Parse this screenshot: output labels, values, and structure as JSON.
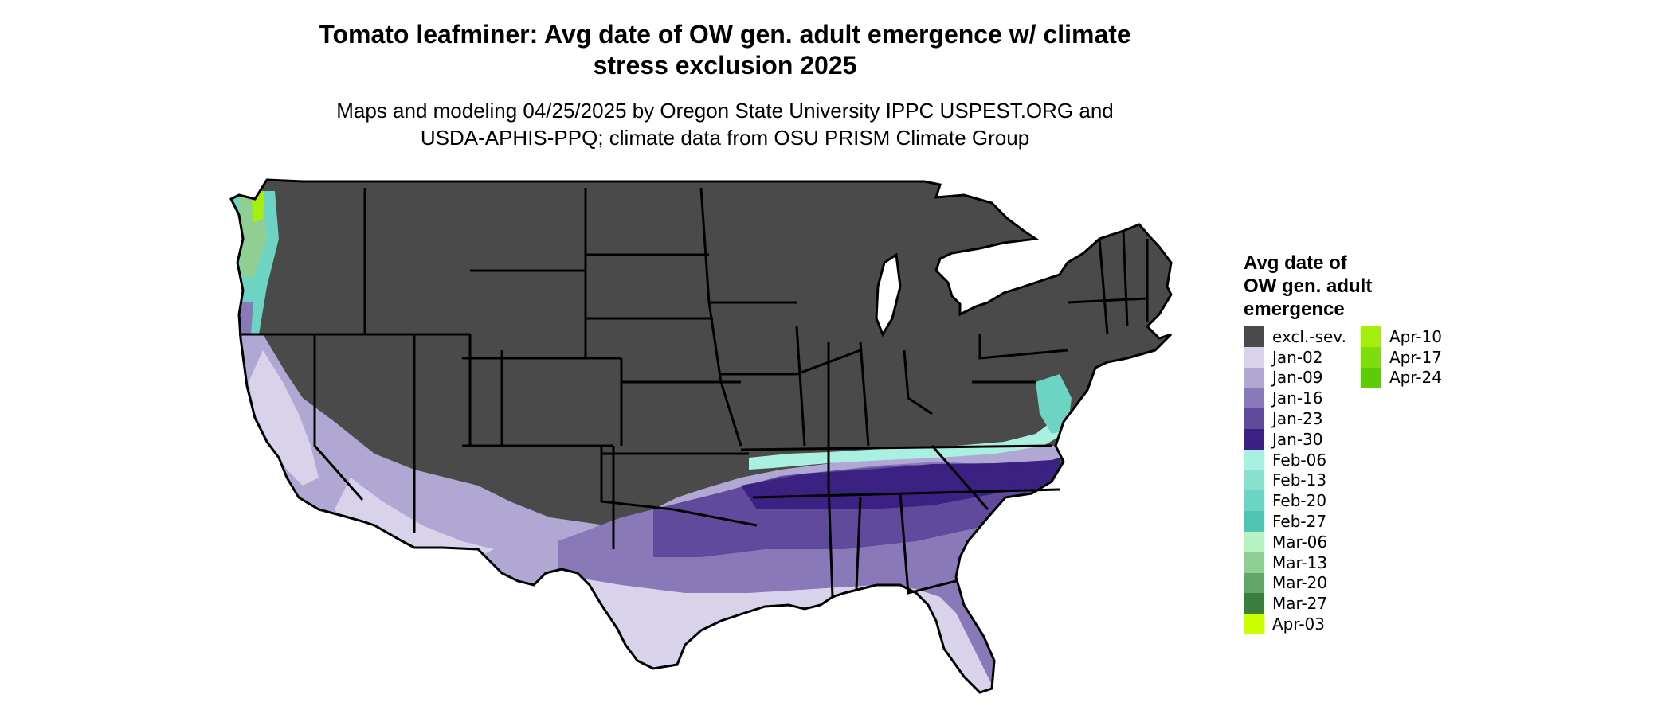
{
  "header": {
    "title_line1": "Tomato leafminer: Avg date of OW gen. adult emergence w/ climate",
    "title_line2": "stress exclusion 2025",
    "subtitle_line1": "Maps and modeling 04/25/2025 by Oregon State University IPPC USPEST.ORG and",
    "subtitle_line2": "USDA-APHIS-PPQ; climate data from OSU PRISM Climate Group"
  },
  "map": {
    "region": "Contiguous United States",
    "excluded_color": "#4a4a4a",
    "border_color": "#000000"
  },
  "legend": {
    "title_line1": "Avg date of",
    "title_line2": "OW gen. adult",
    "title_line3": "emergence",
    "column1": [
      {
        "label": "excl.-sev.",
        "color": "#4a4a4a"
      },
      {
        "label": "Jan-02",
        "color": "#d8d2ea"
      },
      {
        "label": "Jan-09",
        "color": "#b1a7d3"
      },
      {
        "label": "Jan-16",
        "color": "#8a79b8"
      },
      {
        "label": "Jan-23",
        "color": "#5f4a9b"
      },
      {
        "label": "Jan-30",
        "color": "#3b2282"
      },
      {
        "label": "Feb-06",
        "color": "#a9f0e0"
      },
      {
        "label": "Feb-13",
        "color": "#8ae0cf"
      },
      {
        "label": "Feb-20",
        "color": "#6dd4c4"
      },
      {
        "label": "Feb-27",
        "color": "#4fc4b4"
      },
      {
        "label": "Mar-06",
        "color": "#b8f2c4"
      },
      {
        "label": "Mar-13",
        "color": "#8fcf94"
      },
      {
        "label": "Mar-20",
        "color": "#63a56a"
      },
      {
        "label": "Mar-27",
        "color": "#3a7f3e"
      },
      {
        "label": "Apr-03",
        "color": "#ccff00"
      }
    ],
    "column2": [
      {
        "label": "Apr-10",
        "color": "#a6ee10"
      },
      {
        "label": "Apr-17",
        "color": "#7edd0a"
      },
      {
        "label": "Apr-24",
        "color": "#5bcc08"
      }
    ]
  }
}
